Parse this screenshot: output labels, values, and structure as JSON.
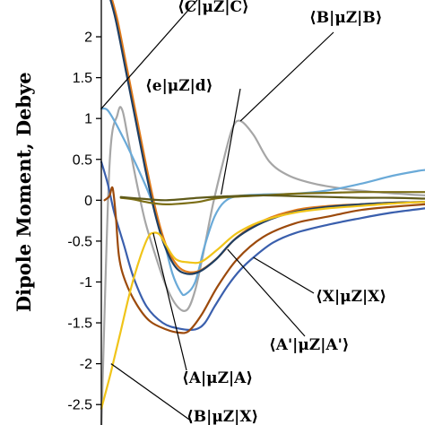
{
  "chart_data": {
    "type": "line",
    "ylabel": "Dipole Moment, Debye",
    "xlabel": "",
    "ylim": [
      -2.75,
      2.45
    ],
    "xlim": [
      0,
      1
    ],
    "yticks": [
      2,
      1.5,
      1,
      0.5,
      0,
      -0.5,
      -1,
      -1.5,
      -2,
      -2.5
    ],
    "ytick_labels": [
      "2",
      "1.5",
      "1",
      "0.5",
      "0",
      "-0.5",
      "-1",
      "-1.5",
      "-2",
      "-2.5"
    ],
    "grid": false,
    "series": [
      {
        "key": "grey",
        "color": "#a6a6a6",
        "points": [
          [
            0,
            -2.8
          ],
          [
            0.025,
            0.4
          ],
          [
            0.05,
            1.05
          ],
          [
            0.065,
            1.1
          ],
          [
            0.085,
            0.7
          ],
          [
            0.11,
            0.2
          ],
          [
            0.135,
            -0.25
          ],
          [
            0.165,
            -0.65
          ],
          [
            0.2,
            -1.05
          ],
          [
            0.235,
            -1.3
          ],
          [
            0.265,
            -1.34
          ],
          [
            0.29,
            -1.1
          ],
          [
            0.315,
            -0.65
          ],
          [
            0.345,
            -0.05
          ],
          [
            0.375,
            0.45
          ],
          [
            0.405,
            0.88
          ],
          [
            0.43,
            0.97
          ],
          [
            0.47,
            0.8
          ],
          [
            0.52,
            0.47
          ],
          [
            0.58,
            0.3
          ],
          [
            0.66,
            0.2
          ],
          [
            0.75,
            0.14
          ],
          [
            0.85,
            0.1
          ],
          [
            0.95,
            0.07
          ],
          [
            1,
            0.06
          ]
        ]
      },
      {
        "key": "lightblue",
        "color": "#6aaad8",
        "points": [
          [
            0,
            1.12
          ],
          [
            0.02,
            1.1
          ],
          [
            0.05,
            0.9
          ],
          [
            0.1,
            0.5
          ],
          [
            0.15,
            0.05
          ],
          [
            0.19,
            -0.45
          ],
          [
            0.22,
            -0.9
          ],
          [
            0.245,
            -1.12
          ],
          [
            0.26,
            -1.15
          ],
          [
            0.29,
            -1.0
          ],
          [
            0.32,
            -0.55
          ],
          [
            0.35,
            -0.2
          ],
          [
            0.38,
            -0.02
          ],
          [
            0.42,
            0.05
          ],
          [
            0.5,
            0.07
          ],
          [
            0.6,
            0.08
          ],
          [
            0.7,
            0.12
          ],
          [
            0.8,
            0.2
          ],
          [
            0.9,
            0.3
          ],
          [
            0.98,
            0.36
          ],
          [
            1,
            0.37
          ]
        ]
      },
      {
        "key": "orange",
        "color": "#e07a1a",
        "points": [
          [
            0.03,
            2.5
          ],
          [
            0.05,
            2.2
          ],
          [
            0.08,
            1.6
          ],
          [
            0.11,
            1.0
          ],
          [
            0.14,
            0.4
          ],
          [
            0.17,
            -0.15
          ],
          [
            0.2,
            -0.55
          ],
          [
            0.235,
            -0.8
          ],
          [
            0.27,
            -0.88
          ],
          [
            0.31,
            -0.85
          ],
          [
            0.36,
            -0.7
          ],
          [
            0.42,
            -0.45
          ],
          [
            0.5,
            -0.25
          ],
          [
            0.6,
            -0.12
          ],
          [
            0.7,
            -0.07
          ],
          [
            0.8,
            -0.05
          ],
          [
            0.9,
            -0.03
          ],
          [
            1,
            -0.02
          ]
        ]
      },
      {
        "key": "dark",
        "color": "#1f3e62",
        "points": [
          [
            0.025,
            2.5
          ],
          [
            0.045,
            2.2
          ],
          [
            0.075,
            1.6
          ],
          [
            0.105,
            1.0
          ],
          [
            0.135,
            0.4
          ],
          [
            0.165,
            -0.15
          ],
          [
            0.195,
            -0.55
          ],
          [
            0.23,
            -0.82
          ],
          [
            0.265,
            -0.9
          ],
          [
            0.305,
            -0.87
          ],
          [
            0.355,
            -0.72
          ],
          [
            0.415,
            -0.47
          ],
          [
            0.5,
            -0.27
          ],
          [
            0.6,
            -0.14
          ],
          [
            0.7,
            -0.08
          ],
          [
            0.8,
            -0.05
          ],
          [
            0.9,
            -0.03
          ],
          [
            1,
            -0.02
          ]
        ]
      },
      {
        "key": "blue",
        "color": "#3a5fad",
        "points": [
          [
            0,
            0.47
          ],
          [
            0.02,
            0.2
          ],
          [
            0.04,
            -0.15
          ],
          [
            0.07,
            -0.55
          ],
          [
            0.1,
            -0.95
          ],
          [
            0.14,
            -1.3
          ],
          [
            0.19,
            -1.5
          ],
          [
            0.24,
            -1.57
          ],
          [
            0.29,
            -1.58
          ],
          [
            0.32,
            -1.5
          ],
          [
            0.35,
            -1.3
          ],
          [
            0.39,
            -1.05
          ],
          [
            0.43,
            -0.85
          ],
          [
            0.47,
            -0.7
          ],
          [
            0.53,
            -0.52
          ],
          [
            0.6,
            -0.4
          ],
          [
            0.7,
            -0.3
          ],
          [
            0.8,
            -0.22
          ],
          [
            0.9,
            -0.15
          ],
          [
            1,
            -0.1
          ]
        ]
      },
      {
        "key": "brown",
        "color": "#9c4a0c",
        "points": [
          [
            0.01,
            0.0
          ],
          [
            0.025,
            0.05
          ],
          [
            0.035,
            0.15
          ],
          [
            0.045,
            -0.2
          ],
          [
            0.055,
            -0.7
          ],
          [
            0.075,
            -1.0
          ],
          [
            0.11,
            -1.28
          ],
          [
            0.15,
            -1.48
          ],
          [
            0.2,
            -1.58
          ],
          [
            0.24,
            -1.62
          ],
          [
            0.27,
            -1.6
          ],
          [
            0.31,
            -1.4
          ],
          [
            0.36,
            -1.05
          ],
          [
            0.42,
            -0.72
          ],
          [
            0.5,
            -0.45
          ],
          [
            0.6,
            -0.28
          ],
          [
            0.7,
            -0.2
          ],
          [
            0.8,
            -0.12
          ],
          [
            0.9,
            -0.08
          ],
          [
            1,
            -0.05
          ]
        ]
      },
      {
        "key": "yellow",
        "color": "#f0c419",
        "points": [
          [
            0,
            -2.55
          ],
          [
            0.03,
            -2.1
          ],
          [
            0.06,
            -1.6
          ],
          [
            0.09,
            -1.1
          ],
          [
            0.12,
            -0.7
          ],
          [
            0.145,
            -0.45
          ],
          [
            0.16,
            -0.4
          ],
          [
            0.18,
            -0.42
          ],
          [
            0.2,
            -0.55
          ],
          [
            0.23,
            -0.72
          ],
          [
            0.27,
            -0.76
          ],
          [
            0.31,
            -0.75
          ],
          [
            0.36,
            -0.6
          ],
          [
            0.42,
            -0.4
          ],
          [
            0.5,
            -0.25
          ],
          [
            0.6,
            -0.15
          ],
          [
            0.7,
            -0.1
          ],
          [
            0.8,
            -0.07
          ],
          [
            0.9,
            -0.04
          ],
          [
            1,
            -0.02
          ]
        ]
      },
      {
        "key": "olive",
        "color": "#7c6e16",
        "points": [
          [
            0.06,
            0.03
          ],
          [
            0.1,
            0.01
          ],
          [
            0.15,
            -0.03
          ],
          [
            0.2,
            -0.05
          ],
          [
            0.25,
            -0.04
          ],
          [
            0.3,
            -0.02
          ],
          [
            0.35,
            0.02
          ],
          [
            0.4,
            0.04
          ],
          [
            0.5,
            0.06
          ],
          [
            0.6,
            0.08
          ],
          [
            0.7,
            0.09
          ],
          [
            0.8,
            0.1
          ],
          [
            0.9,
            0.1
          ],
          [
            1,
            0.1
          ]
        ]
      },
      {
        "key": "olive2",
        "color": "#5f5a1a",
        "points": [
          [
            0.06,
            0.04
          ],
          [
            0.12,
            0.02
          ],
          [
            0.2,
            0.0
          ],
          [
            0.3,
            0.03
          ],
          [
            0.4,
            0.05
          ],
          [
            0.5,
            0.06
          ],
          [
            0.6,
            0.05
          ],
          [
            0.7,
            0.04
          ],
          [
            0.8,
            0.03
          ],
          [
            0.9,
            0.03
          ],
          [
            1,
            0.02
          ]
        ]
      }
    ],
    "annotations": [
      {
        "text": "⟨C|μZ|C⟩",
        "to": [
          0.0,
          1.12
        ]
      },
      {
        "text": "⟨B|μZ|B⟩",
        "to": [
          0.43,
          0.97
        ]
      },
      {
        "text": "⟨e|μZ|d⟩",
        "to": [
          0.37,
          0.07
        ]
      },
      {
        "text": "⟨X|μZ|X⟩",
        "to": [
          0.47,
          -0.7
        ]
      },
      {
        "text": "⟨A'|μZ|A'⟩",
        "to": [
          0.39,
          -0.6
        ]
      },
      {
        "text": "⟨A|μZ|A⟩",
        "to": [
          0.16,
          -0.4
        ]
      },
      {
        "text": "⟨B|μZ|X⟩",
        "to": [
          0.03,
          -2.0
        ]
      }
    ]
  }
}
